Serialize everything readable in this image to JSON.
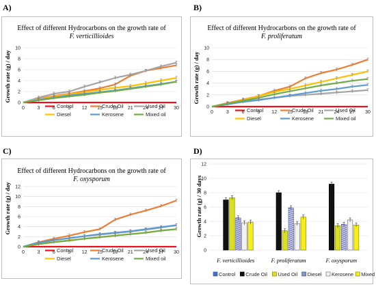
{
  "panel_labels": [
    "A)",
    "B)",
    "C)",
    "D)"
  ],
  "colors": {
    "Control": "#e8111b",
    "Crude Oil": "#ed7d31",
    "Used Oil": "#a5a5a5",
    "Diesel": "#ffc000",
    "Kerosene": "#5b9bd5",
    "Mixed oil": "#70ad47"
  },
  "chart_data": [
    {
      "type": "line",
      "label": "A)",
      "title": "Effect of different Hydrocarbons on the growth rate of",
      "subtitle": "F. verticillioides",
      "xlabel": "",
      "ylabel": "Growth rate (g) / day",
      "x": [
        0,
        3,
        6,
        9,
        12,
        15,
        18,
        21,
        24,
        27,
        30
      ],
      "ylim": [
        0,
        10
      ],
      "yticks": [
        0,
        2,
        4,
        6,
        8,
        10
      ],
      "grid": true,
      "legend_position": "bottom",
      "series": [
        {
          "name": "Control",
          "values": [
            0,
            0,
            0,
            0,
            0,
            0,
            0,
            0,
            0,
            0,
            0
          ]
        },
        {
          "name": "Crude Oil",
          "values": [
            0,
            0.7,
            1.2,
            1.6,
            2.1,
            2.6,
            3.3,
            4.9,
            5.8,
            6.3,
            6.8
          ]
        },
        {
          "name": "Used Oil",
          "values": [
            0,
            0.9,
            1.6,
            2.0,
            2.9,
            3.7,
            4.5,
            5.1,
            5.8,
            6.6,
            7.3
          ]
        },
        {
          "name": "Diesel",
          "values": [
            0,
            0.6,
            1.1,
            1.5,
            1.9,
            2.3,
            2.7,
            3.0,
            3.5,
            4.0,
            4.5
          ]
        },
        {
          "name": "Kerosene",
          "values": [
            0,
            0.5,
            0.9,
            1.3,
            1.6,
            1.9,
            2.2,
            2.6,
            3.0,
            3.4,
            3.8
          ]
        },
        {
          "name": "Mixed oil",
          "values": [
            0,
            0.4,
            0.8,
            1.1,
            1.4,
            1.8,
            2.1,
            2.5,
            2.9,
            3.3,
            3.8
          ]
        }
      ]
    },
    {
      "type": "line",
      "label": "B)",
      "title": "Effect of different Hydrocarbons on the growth rate of",
      "subtitle": "F. proliferatum",
      "xlabel": "",
      "ylabel": "Growth rate (g) / day",
      "x": [
        0,
        3,
        6,
        9,
        12,
        15,
        18,
        21,
        24,
        27,
        30
      ],
      "ylim": [
        0,
        10
      ],
      "yticks": [
        0,
        2,
        4,
        6,
        8,
        10
      ],
      "grid": true,
      "legend_position": "bottom",
      "series": [
        {
          "name": "Control",
          "values": [
            0,
            0,
            0,
            0,
            0,
            0,
            0,
            0,
            0,
            0,
            0
          ]
        },
        {
          "name": "Crude Oil",
          "values": [
            0,
            0.6,
            1.2,
            1.8,
            2.7,
            3.4,
            4.8,
            5.7,
            6.3,
            7.1,
            8.0
          ]
        },
        {
          "name": "Used Oil",
          "values": [
            0,
            0.5,
            0.9,
            1.2,
            1.5,
            1.8,
            2.0,
            2.2,
            2.4,
            2.6,
            2.8
          ]
        },
        {
          "name": "Diesel",
          "values": [
            0,
            0.5,
            1.1,
            1.8,
            2.5,
            3.0,
            3.6,
            4.2,
            4.8,
            5.4,
            6.0
          ]
        },
        {
          "name": "Kerosene",
          "values": [
            0,
            0.4,
            0.8,
            1.1,
            1.5,
            1.9,
            2.3,
            2.7,
            3.0,
            3.4,
            3.7
          ]
        },
        {
          "name": "Mixed oil",
          "values": [
            0,
            0.5,
            1.0,
            1.5,
            2.1,
            2.6,
            3.1,
            3.6,
            4.0,
            4.4,
            4.7
          ]
        }
      ]
    },
    {
      "type": "line",
      "label": "C)",
      "title": "Effect of different Hydrocarbons on the growth rate of",
      "subtitle": "F. oxysporum",
      "xlabel": "",
      "ylabel": "Growth rate (g) / day",
      "x": [
        0,
        3,
        6,
        9,
        12,
        15,
        18,
        21,
        24,
        27,
        30
      ],
      "ylim": [
        0,
        12
      ],
      "yticks": [
        0,
        2,
        4,
        6,
        8,
        10,
        12
      ],
      "grid": true,
      "legend_position": "bottom",
      "series": [
        {
          "name": "Control",
          "values": [
            0,
            0,
            0,
            0,
            0,
            0,
            0,
            0,
            0,
            0,
            0
          ]
        },
        {
          "name": "Crude Oil",
          "values": [
            0,
            0.9,
            1.6,
            2.2,
            2.9,
            3.5,
            5.4,
            6.4,
            7.2,
            8.1,
            9.2
          ]
        },
        {
          "name": "Used Oil",
          "values": [
            0,
            0.7,
            1.3,
            1.7,
            2.1,
            2.4,
            2.7,
            3.0,
            3.4,
            3.8,
            4.3
          ]
        },
        {
          "name": "Diesel",
          "values": [
            0,
            0.5,
            0.9,
            1.3,
            1.6,
            1.9,
            2.2,
            2.5,
            2.8,
            3.2,
            3.5
          ]
        },
        {
          "name": "Kerosene",
          "values": [
            0,
            0.8,
            1.3,
            1.7,
            2.1,
            2.5,
            2.8,
            3.1,
            3.5,
            3.9,
            4.3
          ]
        },
        {
          "name": "Mixed oil",
          "values": [
            0,
            0.5,
            0.9,
            1.2,
            1.6,
            1.9,
            2.2,
            2.5,
            2.8,
            3.2,
            3.5
          ]
        }
      ]
    },
    {
      "type": "bar",
      "label": "D)",
      "title": "",
      "xlabel": "",
      "ylabel": "Growth rate (g) / 30 days",
      "categories": [
        "F. verticillioides",
        "F. proliferatum",
        "F. oxysporum"
      ],
      "ylim": [
        0,
        12
      ],
      "yticks": [
        0,
        2,
        4,
        6,
        8,
        10,
        12
      ],
      "grid": true,
      "legend_position": "bottom",
      "series": [
        {
          "name": "Control",
          "values": [
            0,
            0,
            0
          ]
        },
        {
          "name": "Crude Oil",
          "values": [
            7.0,
            8.0,
            9.2
          ]
        },
        {
          "name": "Used Oil",
          "values": [
            7.3,
            2.7,
            3.4
          ]
        },
        {
          "name": "Diesel",
          "values": [
            4.5,
            5.9,
            3.6
          ]
        },
        {
          "name": "Kerosene",
          "values": [
            3.8,
            3.7,
            4.2
          ]
        },
        {
          "name": "Mixed oil",
          "values": [
            3.9,
            4.6,
            3.5
          ]
        }
      ]
    }
  ]
}
